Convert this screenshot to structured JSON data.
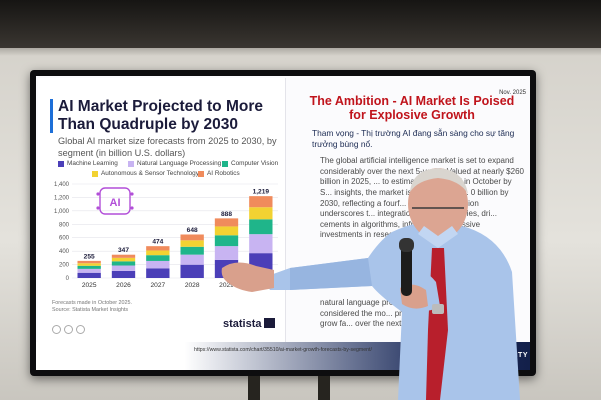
{
  "slide": {
    "chart_card": {
      "title": "AI Market Projected to More Than Quadruple by 2030",
      "subtitle": "Global AI market size forecasts from 2025 to 2030, by segment (in billion U.S. dollars)",
      "legend": [
        {
          "name": "Machine Learning",
          "color": "#4b3fb8"
        },
        {
          "name": "Natural Language Processing",
          "color": "#c8b4f2"
        },
        {
          "name": "Computer Vision",
          "color": "#1fb58a"
        },
        {
          "name": "Autonomous & Sensor Technology",
          "color": "#f2d232"
        },
        {
          "name": "AI Robotics",
          "color": "#f08b5c"
        }
      ],
      "notes_1": "Forecasts made in October 2025.",
      "notes_2": "Source: Statista Market Insights",
      "logo": "statista",
      "ai_icon_label": "AI"
    },
    "date": "Nov. 2025",
    "title": "The Ambition - AI Market Is Poised for Explosive Growth",
    "subtitle_vi": "Tham vọng - Thị trường AI đang sẵn sàng cho sự tăng trưởng bùng nổ.",
    "body_1": "The global artificial intelligence market is set to expand considerably over the next 5-years. Valued at nearly $260 billion in 2025, ... to estimates published in October by S... insights, the market is projected to s... 0 billion by 2030, reflecting a fourf... nticipated explosion underscores t... integration across industries, dri... cements in algorithms, infrastruc... d massive investments in researc...",
    "body_2": "natural language pro... considered the mo... projected to grow fa... over the next 5-years.",
    "url": "https://www.statista.com/chart/35510/ai-market-growth-forecasts-by-segment/",
    "footer_brand": "RSITY"
  },
  "chart_data": {
    "type": "bar",
    "stacked": true,
    "categories": [
      "2025",
      "2026",
      "2027",
      "2028",
      "2029",
      "2030"
    ],
    "totals": [
      255,
      347,
      474,
      648,
      888,
      1219
    ],
    "series": [
      {
        "name": "Machine Learning",
        "values": [
          78,
          106,
          144,
          198,
          270,
          370
        ]
      },
      {
        "name": "Natural Language Processing",
        "values": [
          58,
          80,
          110,
          150,
          205,
          283
        ]
      },
      {
        "name": "Computer Vision",
        "values": [
          46,
          62,
          86,
          117,
          161,
          221
        ]
      },
      {
        "name": "Autonomous & Sensor Technology",
        "values": [
          38,
          52,
          70,
          96,
          132,
          180
        ]
      },
      {
        "name": "AI Robotics",
        "values": [
          35,
          47,
          64,
          87,
          120,
          165
        ]
      }
    ],
    "yticks": [
      "0",
      "200",
      "400",
      "600",
      "800",
      "1,000",
      "1,200",
      "1,400"
    ],
    "ylim": [
      0,
      1400
    ],
    "grid": true
  }
}
